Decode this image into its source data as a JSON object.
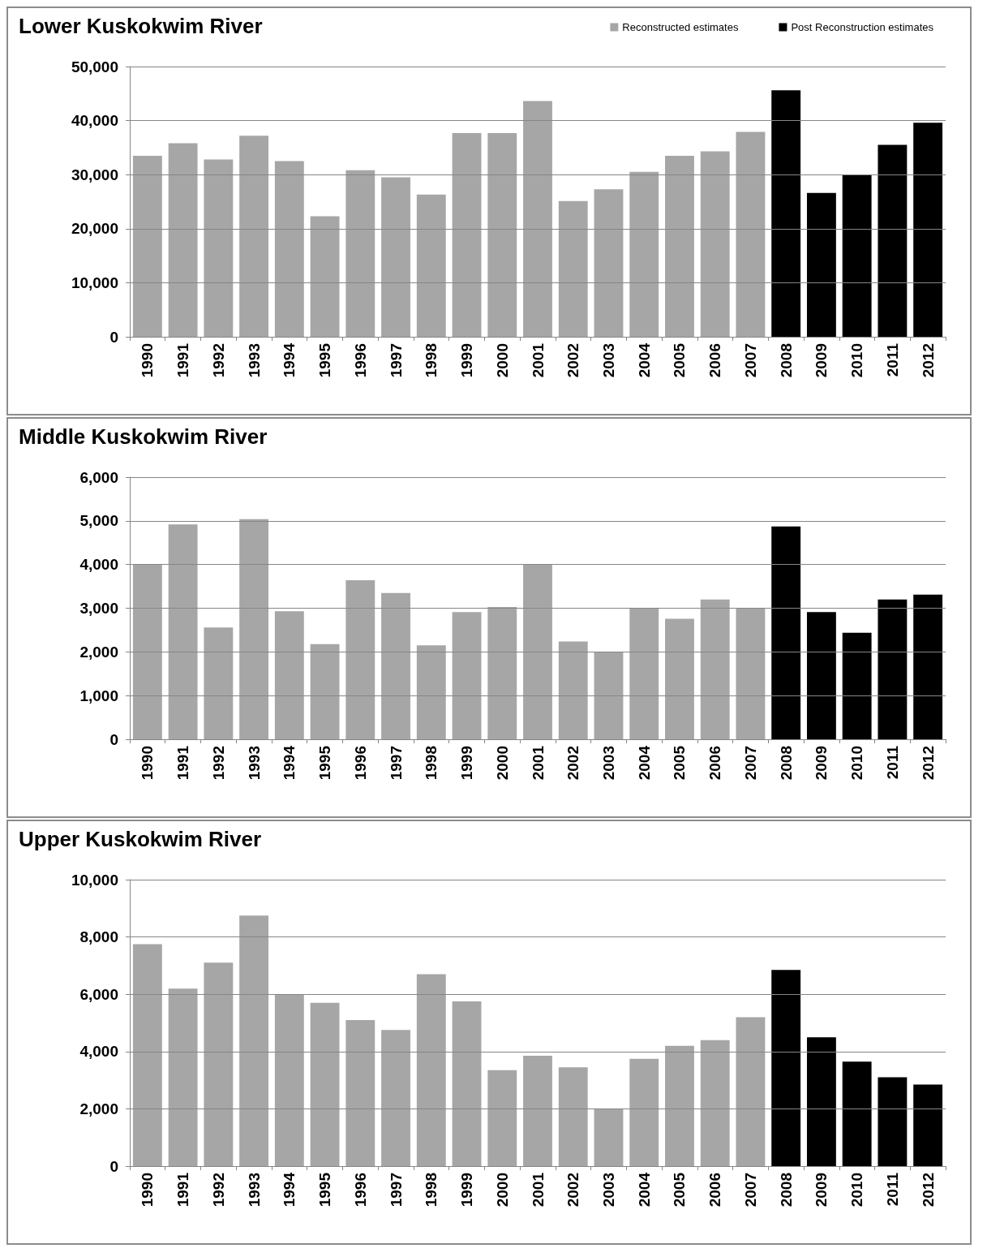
{
  "chart_data": [
    {
      "type": "bar",
      "title": "Lower Kuskokwim River",
      "categories": [
        "1990",
        "1991",
        "1992",
        "1993",
        "1994",
        "1995",
        "1996",
        "1997",
        "1998",
        "1999",
        "2000",
        "2001",
        "2002",
        "2003",
        "2004",
        "2005",
        "2006",
        "2007",
        "2008",
        "2009",
        "2010",
        "2011",
        "2012"
      ],
      "series": [
        {
          "name": "Reconstructed estimates",
          "color": "#a6a6a6",
          "values": [
            33500,
            35800,
            32800,
            37200,
            32500,
            22300,
            30800,
            29500,
            26300,
            37700,
            37700,
            43600,
            25100,
            27300,
            30500,
            33500,
            34300,
            37900,
            null,
            null,
            null,
            null,
            null
          ]
        },
        {
          "name": "Post Reconstruction estimates",
          "color": "#000000",
          "values": [
            null,
            null,
            null,
            null,
            null,
            null,
            null,
            null,
            null,
            null,
            null,
            null,
            null,
            null,
            null,
            null,
            null,
            null,
            45600,
            26600,
            30000,
            35500,
            39600
          ]
        }
      ],
      "ylim": [
        0,
        50000
      ],
      "yticks": [
        {
          "value": 0,
          "label": "0"
        },
        {
          "value": 10000,
          "label": "10,000"
        },
        {
          "value": 20000,
          "label": "20,000"
        },
        {
          "value": 30000,
          "label": "30,000"
        },
        {
          "value": 40000,
          "label": "40,000"
        },
        {
          "value": 50000,
          "label": "50,000"
        }
      ],
      "grid": "y",
      "legend": "top right"
    },
    {
      "type": "bar",
      "title": "Middle Kuskokwim River",
      "categories": [
        "1990",
        "1991",
        "1992",
        "1993",
        "1994",
        "1995",
        "1996",
        "1997",
        "1998",
        "1999",
        "2000",
        "2001",
        "2002",
        "2003",
        "2004",
        "2005",
        "2006",
        "2007",
        "2008",
        "2009",
        "2010",
        "2011",
        "2012"
      ],
      "series": [
        {
          "color": "#a6a6a6",
          "values": [
            4000,
            4920,
            2560,
            5040,
            2930,
            2180,
            3640,
            3350,
            2150,
            2910,
            3030,
            4010,
            2240,
            2000,
            2990,
            2760,
            3200,
            2990,
            null,
            null,
            null,
            null,
            null
          ]
        },
        {
          "color": "#000000",
          "values": [
            null,
            null,
            null,
            null,
            null,
            null,
            null,
            null,
            null,
            null,
            null,
            null,
            null,
            null,
            null,
            null,
            null,
            null,
            4870,
            2910,
            2440,
            3200,
            3310
          ]
        }
      ],
      "ylim": [
        0,
        6000
      ],
      "yticks": [
        {
          "value": 0,
          "label": "0"
        },
        {
          "value": 1000,
          "label": "1,000"
        },
        {
          "value": 2000,
          "label": "2,000"
        },
        {
          "value": 3000,
          "label": "3,000"
        },
        {
          "value": 4000,
          "label": "4,000"
        },
        {
          "value": 5000,
          "label": "5,000"
        },
        {
          "value": 6000,
          "label": "6,000"
        }
      ],
      "grid": "y"
    },
    {
      "type": "bar",
      "title": "Upper Kuskokwim River",
      "categories": [
        "1990",
        "1991",
        "1992",
        "1993",
        "1994",
        "1995",
        "1996",
        "1997",
        "1998",
        "1999",
        "2000",
        "2001",
        "2002",
        "2003",
        "2004",
        "2005",
        "2006",
        "2007",
        "2008",
        "2009",
        "2010",
        "2011",
        "2012"
      ],
      "series": [
        {
          "color": "#a6a6a6",
          "values": [
            7750,
            6200,
            7100,
            8750,
            6000,
            5700,
            5100,
            4750,
            6700,
            5750,
            3350,
            3850,
            3450,
            2000,
            3750,
            4200,
            4400,
            5200,
            null,
            null,
            null,
            null,
            null
          ]
        },
        {
          "color": "#000000",
          "values": [
            null,
            null,
            null,
            null,
            null,
            null,
            null,
            null,
            null,
            null,
            null,
            null,
            null,
            null,
            null,
            null,
            null,
            null,
            6850,
            4500,
            3650,
            3100,
            2850
          ]
        }
      ],
      "ylim": [
        0,
        10000
      ],
      "yticks": [
        {
          "value": 0,
          "label": "0"
        },
        {
          "value": 2000,
          "label": "2,000"
        },
        {
          "value": 4000,
          "label": "4,000"
        },
        {
          "value": 6000,
          "label": "6,000"
        },
        {
          "value": 8000,
          "label": "8,000"
        },
        {
          "value": 10000,
          "label": "10,000"
        }
      ],
      "grid": "y"
    }
  ]
}
